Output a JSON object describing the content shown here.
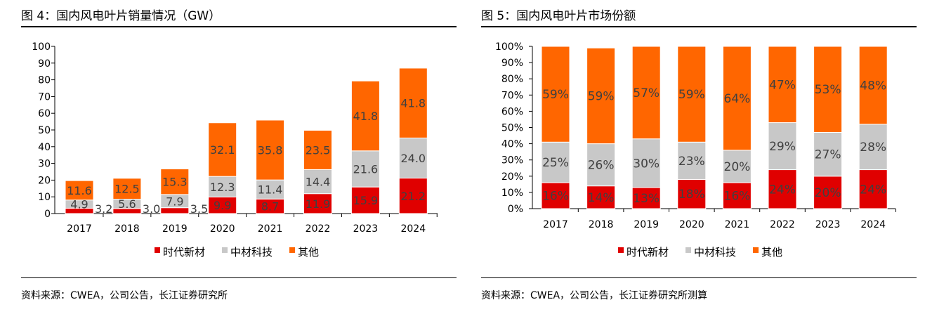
{
  "left": {
    "title": "图 4：国内风电叶片销量情况（GW）",
    "source": "资料来源：CWEA，公司公告，长江证券研究所"
  },
  "right": {
    "title": "图 5：国内风电叶片市场份额",
    "source": "资料来源：CWEA，公司公告，长江证券研究所测算"
  },
  "colors": {
    "时代新材": "#e00000",
    "中材科技": "#c8c8c8",
    "其他": "#ff6600"
  },
  "chart_data": [
    {
      "type": "bar",
      "stacked": true,
      "categories": [
        "2017",
        "2018",
        "2019",
        "2020",
        "2021",
        "2022",
        "2023",
        "2024"
      ],
      "ylim": [
        0,
        100
      ],
      "yticks": [
        0,
        10,
        20,
        30,
        40,
        50,
        60,
        70,
        80,
        90,
        100
      ],
      "legend": "bottom",
      "series": [
        {
          "name": "时代新材",
          "values": [
            3.2,
            3.0,
            3.5,
            9.9,
            8.7,
            11.9,
            15.9,
            21.2
          ]
        },
        {
          "name": "中材科技",
          "values": [
            4.9,
            5.6,
            7.9,
            12.3,
            11.4,
            14.4,
            21.6,
            24.0
          ]
        },
        {
          "name": "其他",
          "values": [
            11.6,
            12.5,
            15.3,
            32.1,
            35.8,
            23.5,
            41.8,
            41.8
          ]
        }
      ]
    },
    {
      "type": "bar",
      "stacked": true,
      "percent": true,
      "categories": [
        "2017",
        "2018",
        "2019",
        "2020",
        "2021",
        "2022",
        "2023",
        "2024"
      ],
      "ylim": [
        0,
        100
      ],
      "yticks": [
        0,
        10,
        20,
        30,
        40,
        50,
        60,
        70,
        80,
        90,
        100
      ],
      "legend": "bottom",
      "series": [
        {
          "name": "时代新材",
          "values": [
            16,
            14,
            13,
            18,
            16,
            24,
            20,
            24
          ]
        },
        {
          "name": "中材科技",
          "values": [
            25,
            26,
            30,
            23,
            20,
            29,
            27,
            28
          ]
        },
        {
          "name": "其他",
          "values": [
            59,
            59,
            57,
            59,
            64,
            47,
            53,
            48
          ]
        }
      ]
    }
  ]
}
